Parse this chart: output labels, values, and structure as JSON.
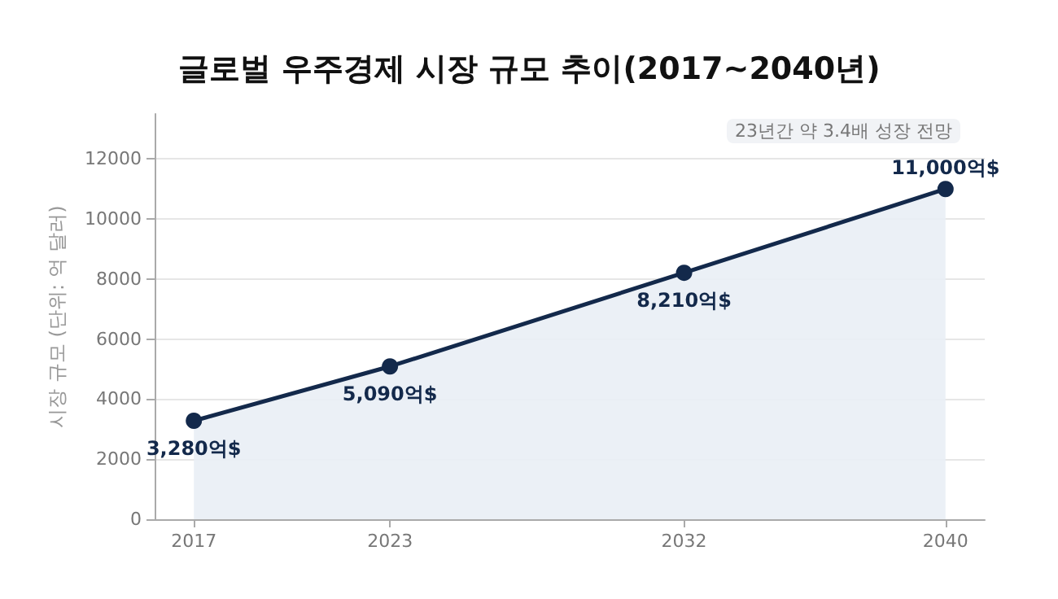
{
  "chart_data": {
    "type": "area",
    "title": "글로벌 우주경제 시장 규모 추이(2017~2040년)",
    "ylabel": "시장 규모 (단위: 억 달러)",
    "x": [
      2017,
      2023,
      2032,
      2040
    ],
    "series": [
      {
        "color": "#13294b",
        "values": [
          3280,
          5090,
          8210,
          11000
        ],
        "value_labels": [
          "3,280억$",
          "5,090억$",
          "8,210억$",
          "11,000억$"
        ]
      }
    ],
    "xlim": [
      2015.8,
      2041.2
    ],
    "xticks": [
      2017,
      2023,
      2032,
      2040
    ],
    "ylim": [
      0,
      13500
    ],
    "yticks": [
      0,
      2000,
      4000,
      6000,
      8000,
      10000,
      12000
    ],
    "grid": "y",
    "marker": "circle",
    "line_style": "solid",
    "annotations": [
      "23년간 약 3.4배 성장 전망"
    ]
  }
}
